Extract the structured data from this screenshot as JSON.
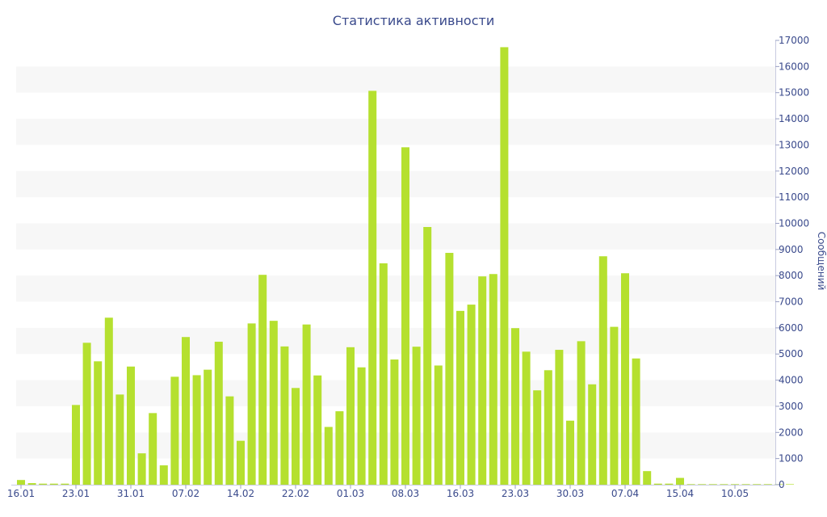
{
  "chart_data": {
    "type": "bar",
    "title": "Статистика активности",
    "ylabel": "Сообщений",
    "xlabel": "",
    "ylim": [
      0,
      17000
    ],
    "yticks": [
      0,
      1000,
      2000,
      3000,
      4000,
      5000,
      6000,
      7000,
      8000,
      9000,
      10000,
      11000,
      12000,
      13000,
      14000,
      15000,
      16000,
      17000
    ],
    "ytick_labels": [
      "0",
      "1000",
      "2000",
      "3000",
      "4000",
      "5000",
      "6000",
      "7000",
      "8000",
      "9000",
      "10000",
      "11000",
      "12000",
      "13000",
      "14000",
      "15000",
      "16000",
      "17000"
    ],
    "y_axis_side": "right",
    "bar_interval_days": 2,
    "x_tick_labels": [
      "16.01",
      "23.01",
      "31.01",
      "07.02",
      "14.02",
      "22.02",
      "01.03",
      "08.03",
      "16.03",
      "23.03",
      "30.03",
      "07.04",
      "15.04",
      "10.05"
    ],
    "x_tick_bar_index": [
      0,
      5,
      10,
      15,
      20,
      25,
      30,
      35,
      40,
      45,
      50,
      55,
      60,
      65
    ],
    "values": [
      180,
      60,
      40,
      40,
      40,
      3050,
      5430,
      4720,
      6390,
      3450,
      4520,
      1200,
      2740,
      740,
      4130,
      5650,
      4190,
      4400,
      5470,
      3380,
      1680,
      6170,
      8030,
      6270,
      5290,
      3700,
      6130,
      4180,
      2210,
      2810,
      5260,
      4490,
      15070,
      8470,
      4790,
      12910,
      5280,
      9860,
      4560,
      8870,
      6650,
      6890,
      7970,
      8060,
      16740,
      5990,
      5090,
      3610,
      4380,
      5160,
      2450,
      5490,
      3840,
      8740,
      6040,
      8090,
      4830,
      520,
      40,
      40,
      260,
      20,
      20,
      20,
      20,
      20,
      20,
      20,
      20,
      20,
      20
    ],
    "grid": "horizontal bands",
    "bar_color": "#b5e02f",
    "band_color": "#f7f7f7",
    "text_color": "#3a4a8c"
  }
}
